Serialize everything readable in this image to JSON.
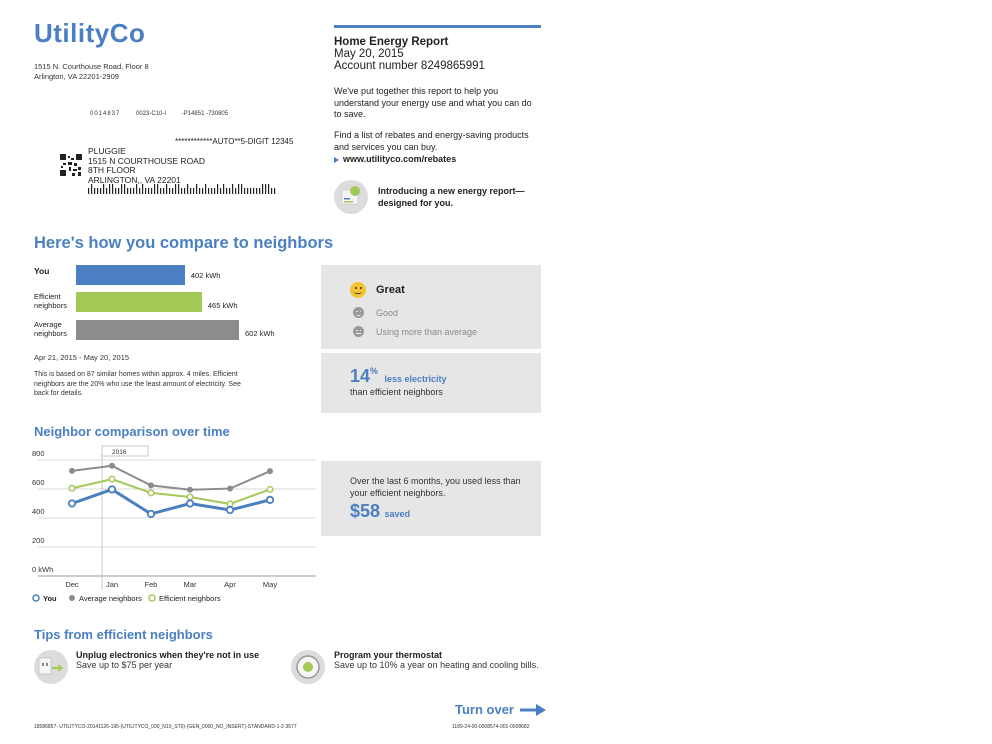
{
  "company": {
    "logo": "UtilityCo",
    "address1": "1515 N. Courthouse Road, Floor 8",
    "address2": "Arlington, VA 22201-2909"
  },
  "mailing": {
    "codes1": "0014837",
    "codes2": "0023-C10-I",
    "codes3": "-P14851 -730805",
    "sort_line": "************AUTO**5-DIGIT 12345",
    "name": "PLUGGIE",
    "street": "1515 N COURTHOUSE ROAD",
    "floor": "8TH FLOOR",
    "city": "ARLINGTON,, VA 22201"
  },
  "report": {
    "title": "Home Energy Report",
    "date": "May 20, 2015",
    "account": "Account number 8249865991",
    "intro": "We've put together this report to help you understand your energy use and what you can do to save.",
    "rebates_text": "Find a list of rebates and energy-saving products and services you can buy.",
    "rebates_link": "www.utilityco.com/rebates",
    "new_report_line1": "Introducing a new energy report—",
    "new_report_line2": "designed for you."
  },
  "compare": {
    "heading": "Here's how you compare to neighbors",
    "bars": [
      {
        "label1": "You",
        "label2": "",
        "value": 402,
        "value_label": "402 kWh",
        "color": "#4a7fc1"
      },
      {
        "label1": "Efficient",
        "label2": "neighbors",
        "value": 465,
        "value_label": "465 kWh",
        "color": "#a3c957"
      },
      {
        "label1": "Average",
        "label2": "neighbors",
        "value": 602,
        "value_label": "602 kWh",
        "color": "#8c8c8c"
      }
    ],
    "period": "Apr 21, 2015 - May 20, 2015",
    "note": "This is based on 87 similar homes within approx. 4 miles. Efficient neighbors are the 20% who use the least amount of electricity. See back for details.",
    "rating": {
      "great": "Great",
      "good": "Good",
      "more": "Using more than average"
    },
    "percent": "14",
    "percent_sign": "%",
    "less_text": "less electricity",
    "than_text": "than efficient neighbors"
  },
  "chart_data": {
    "type": "line",
    "title": "Neighbor comparison over time",
    "categories": [
      "Dec",
      "Jan",
      "Feb",
      "Mar",
      "Apr",
      "May"
    ],
    "x": [
      "Dec",
      "Jan",
      "Feb",
      "Mar",
      "Apr",
      "May"
    ],
    "year_marker": "2016",
    "yticks": [
      "800",
      "600",
      "400",
      "200",
      "0 kWh"
    ],
    "ylim": [
      0,
      800
    ],
    "grid": true,
    "legend_position": "bottom-left",
    "series": [
      {
        "name": "You",
        "color": "#4a7fc1",
        "values": [
          500,
          597,
          428,
          500,
          455,
          525
        ]
      },
      {
        "name": "Average neighbors",
        "color": "#8c8c8c",
        "values": [
          725,
          760,
          625,
          595,
          603,
          723
        ]
      },
      {
        "name": "Efficient neighbors",
        "color": "#a3c957",
        "values": [
          605,
          668,
          573,
          545,
          497,
          597
        ]
      }
    ]
  },
  "saved_panel": {
    "text": "Over the last 6 months, you used less than your efficient neighbors.",
    "amount": "$58",
    "saved": "saved"
  },
  "tips": {
    "heading": "Tips from efficient neighbors",
    "items": [
      {
        "title": "Unplug electronics when they're not in use",
        "detail": "Save up to $75 per year"
      },
      {
        "title": "Program your thermostat",
        "detail": "Save up to 10% a year on heating and cooling bills."
      }
    ]
  },
  "footer": {
    "turn_over": "Turn over",
    "code_left": "18586857- UTILITYCO-20141126-195-(UTILITYCO_000_N10_ST0)-(GEN_0000_NO_INSERT)-STANDARD-1-2-3577",
    "code_right": "1189-24-00-0008574-001-0008682"
  }
}
